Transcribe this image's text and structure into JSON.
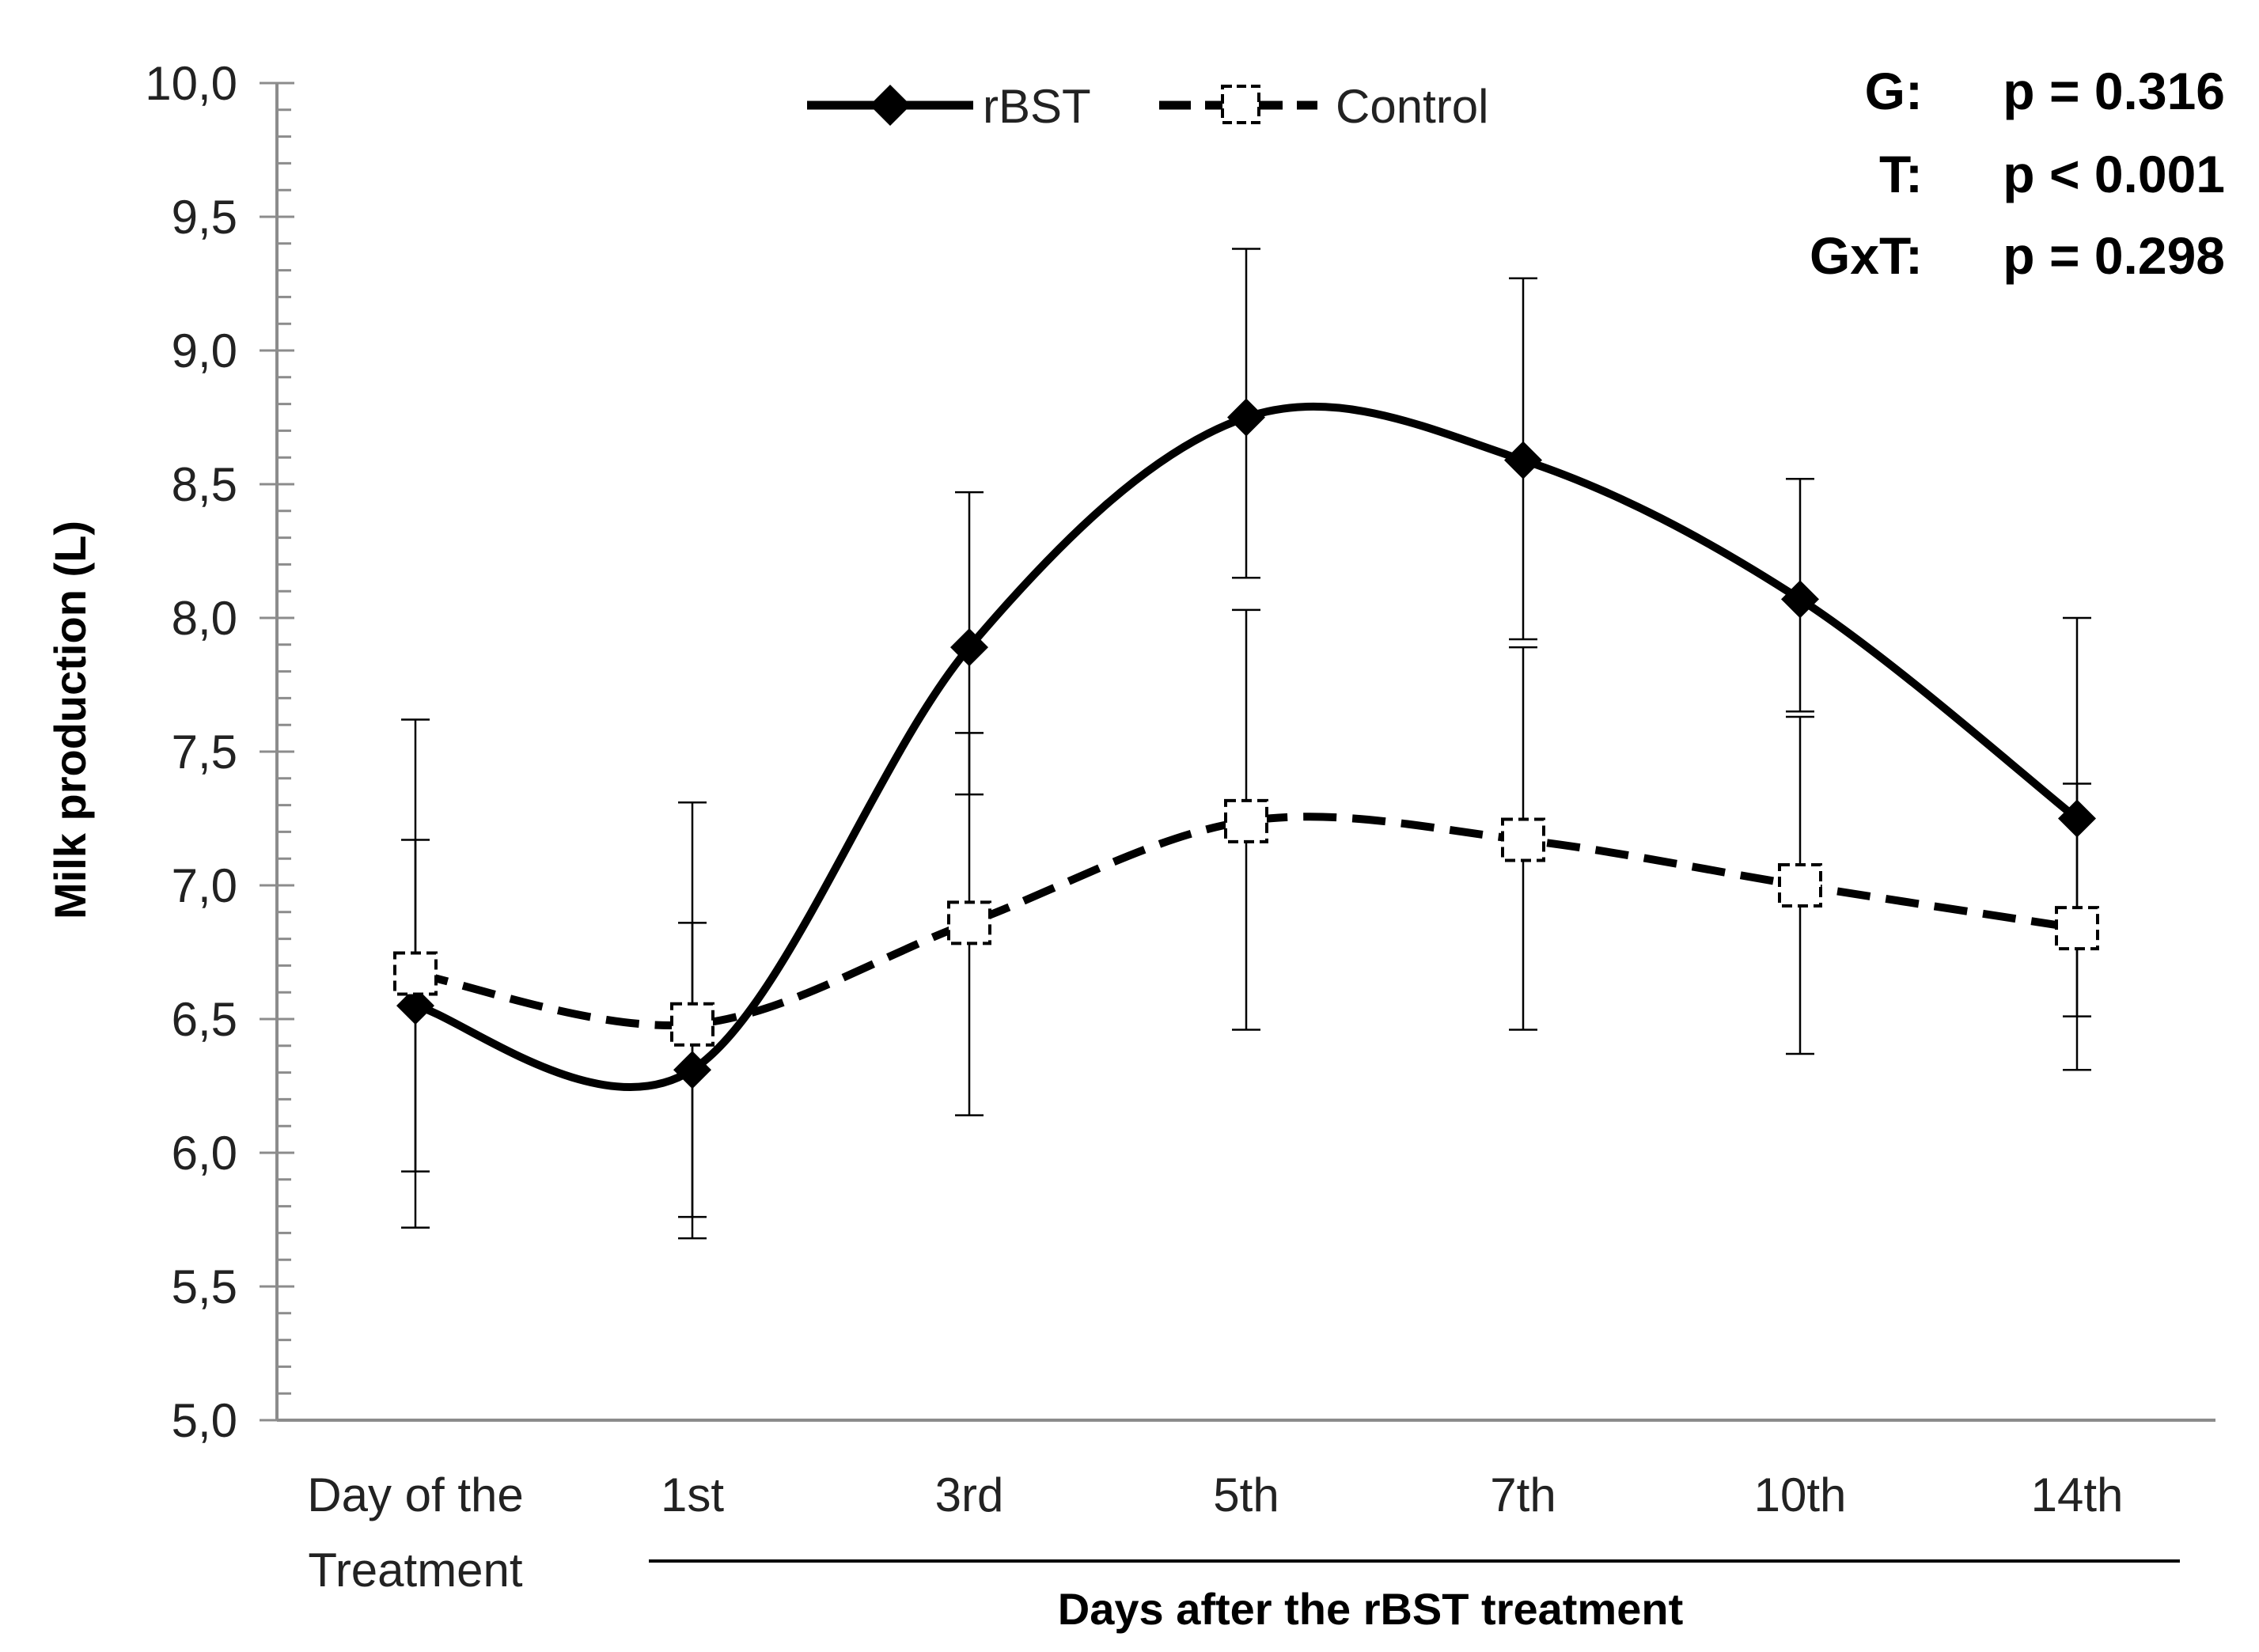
{
  "chart_data": {
    "type": "line",
    "ylabel": "Milk production (L)",
    "xlabel": "Days after the rBST treatment",
    "ylim": [
      5.0,
      10.0
    ],
    "ytick_step": 0.5,
    "yticks": [
      "5,0",
      "5,5",
      "6,0",
      "6,5",
      "7,0",
      "7,5",
      "8,0",
      "8,5",
      "9,0",
      "9,5",
      "10,0"
    ],
    "categories": [
      {
        "line1": "Day of the",
        "line2": "Treatment"
      },
      {
        "line1": "1st",
        "line2": ""
      },
      {
        "line1": "3rd",
        "line2": ""
      },
      {
        "line1": "5th",
        "line2": ""
      },
      {
        "line1": "7th",
        "line2": ""
      },
      {
        "line1": "10th",
        "line2": ""
      },
      {
        "line1": "14th",
        "line2": ""
      }
    ],
    "series": [
      {
        "name": "rBST",
        "style": "solid",
        "marker": "filled-diamond",
        "color": "#000000",
        "values": [
          6.55,
          6.31,
          7.89,
          8.75,
          8.59,
          8.07,
          7.25
        ],
        "err_low": [
          5.93,
          5.76,
          7.34,
          8.15,
          7.92,
          7.65,
          6.51
        ],
        "err_high": [
          7.17,
          6.86,
          8.47,
          9.38,
          9.27,
          8.52,
          8.0
        ]
      },
      {
        "name": "Control",
        "style": "dashed",
        "marker": "open-square",
        "color": "#000000",
        "values": [
          6.67,
          6.48,
          6.86,
          7.24,
          7.17,
          7.0,
          6.84
        ],
        "err_low": [
          5.72,
          5.68,
          6.14,
          6.46,
          6.46,
          6.37,
          6.31
        ],
        "err_high": [
          7.62,
          7.31,
          7.57,
          8.03,
          7.89,
          7.63,
          7.38
        ]
      }
    ],
    "stats": [
      {
        "label": "G:",
        "value": "p = 0.316"
      },
      {
        "label": "T:",
        "value": "p < 0.001"
      },
      {
        "label": "GxT:",
        "value": "p = 0.298"
      }
    ],
    "legend_position": "top-center"
  }
}
